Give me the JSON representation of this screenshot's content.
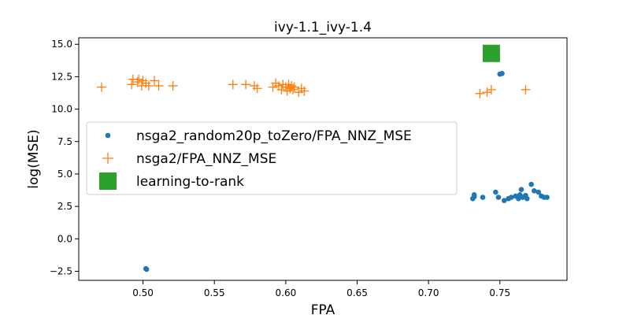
{
  "colors": {
    "series_blue": "#1f77b4",
    "series_orange": "#ff7f0e",
    "series_green": "#2ca02c"
  },
  "chart_data": {
    "type": "scatter",
    "title": "ivy-1.1_ivy-1.4",
    "xlabel": "FPA",
    "ylabel": "log(MSE)",
    "xlim": [
      0.455,
      0.797
    ],
    "ylim": [
      -3.2,
      15.5
    ],
    "xticks": [
      0.5,
      0.55,
      0.6,
      0.65,
      0.7,
      0.75
    ],
    "xtick_labels": [
      "0.50",
      "0.55",
      "0.60",
      "0.65",
      "0.70",
      "0.75"
    ],
    "yticks": [
      -2.5,
      0.0,
      2.5,
      5.0,
      7.5,
      10.0,
      12.5,
      15.0
    ],
    "ytick_labels": [
      "−2.5",
      "0.0",
      "2.5",
      "5.0",
      "7.5",
      "10.0",
      "12.5",
      "15.0"
    ],
    "grid": false,
    "legend_position": "center-left",
    "series": [
      {
        "name": "nsga2_random20p_toZero/FPA_NNZ_MSE",
        "marker": "circle",
        "color": "#1f77b4",
        "points": [
          [
            0.502,
            -2.3
          ],
          [
            0.5025,
            -2.35
          ],
          [
            0.75,
            12.7
          ],
          [
            0.7515,
            12.75
          ],
          [
            0.731,
            3.1
          ],
          [
            0.732,
            3.25
          ],
          [
            0.732,
            3.4
          ],
          [
            0.738,
            3.2
          ],
          [
            0.747,
            3.6
          ],
          [
            0.749,
            3.2
          ],
          [
            0.753,
            2.95
          ],
          [
            0.756,
            3.1
          ],
          [
            0.758,
            3.2
          ],
          [
            0.761,
            3.3
          ],
          [
            0.763,
            3.1
          ],
          [
            0.764,
            3.4
          ],
          [
            0.765,
            3.8
          ],
          [
            0.766,
            3.2
          ],
          [
            0.768,
            3.35
          ],
          [
            0.769,
            3.1
          ],
          [
            0.772,
            4.2
          ],
          [
            0.774,
            3.7
          ],
          [
            0.777,
            3.6
          ],
          [
            0.779,
            3.3
          ],
          [
            0.781,
            3.2
          ],
          [
            0.783,
            3.2
          ]
        ]
      },
      {
        "name": "nsga2/FPA_NNZ_MSE",
        "marker": "plus",
        "color": "#ff7f0e",
        "points": [
          [
            0.471,
            11.7
          ],
          [
            0.492,
            11.9
          ],
          [
            0.493,
            12.3
          ],
          [
            0.496,
            12.1
          ],
          [
            0.497,
            12.3
          ],
          [
            0.499,
            11.8
          ],
          [
            0.5,
            12.2
          ],
          [
            0.502,
            12.0
          ],
          [
            0.504,
            11.8
          ],
          [
            0.508,
            12.2
          ],
          [
            0.511,
            11.8
          ],
          [
            0.521,
            11.8
          ],
          [
            0.563,
            11.9
          ],
          [
            0.572,
            11.9
          ],
          [
            0.578,
            11.8
          ],
          [
            0.58,
            11.6
          ],
          [
            0.591,
            11.7
          ],
          [
            0.593,
            12.0
          ],
          [
            0.595,
            11.8
          ],
          [
            0.597,
            11.5
          ],
          [
            0.598,
            11.9
          ],
          [
            0.6,
            11.7
          ],
          [
            0.601,
            11.4
          ],
          [
            0.602,
            11.9
          ],
          [
            0.603,
            11.6
          ],
          [
            0.604,
            11.8
          ],
          [
            0.605,
            11.5
          ],
          [
            0.606,
            11.7
          ],
          [
            0.609,
            11.3
          ],
          [
            0.611,
            11.6
          ],
          [
            0.613,
            11.4
          ],
          [
            0.736,
            11.2
          ],
          [
            0.741,
            11.3
          ],
          [
            0.744,
            11.5
          ],
          [
            0.768,
            11.5
          ]
        ]
      },
      {
        "name": "learning-to-rank",
        "marker": "square",
        "color": "#2ca02c",
        "points": [
          [
            0.744,
            14.3
          ]
        ]
      }
    ]
  }
}
